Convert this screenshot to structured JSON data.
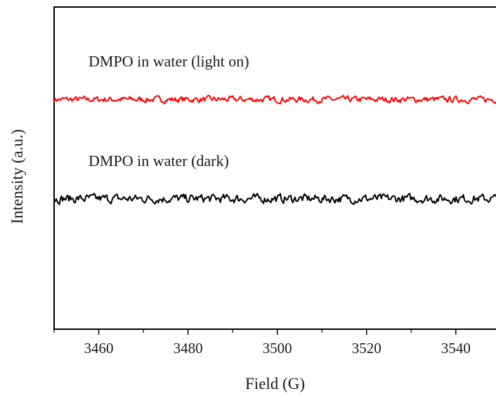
{
  "chart_data": {
    "type": "line",
    "xlabel": "Field (G)",
    "ylabel": "Intensity (a.u.)",
    "xlim": [
      3450,
      3549
    ],
    "ylim": [
      0,
      1
    ],
    "x_ticks": [
      "3460",
      "3480",
      "3500",
      "3520",
      "3540"
    ],
    "x_tick_values": [
      3460,
      3480,
      3500,
      3520,
      3540
    ],
    "y_ticks_shown": false,
    "grid": false,
    "legend": "none",
    "series": [
      {
        "name": "DMPO in water (light on)",
        "color": "#ff0000",
        "baseline": 0.713,
        "noise_amplitude": 0.012,
        "label_at": [
          3453,
          0.816
        ]
      },
      {
        "name": "DMPO in water (dark)",
        "color": "#000000",
        "baseline": 0.405,
        "noise_amplitude": 0.014,
        "label_at": [
          3453,
          0.507
        ]
      }
    ]
  }
}
